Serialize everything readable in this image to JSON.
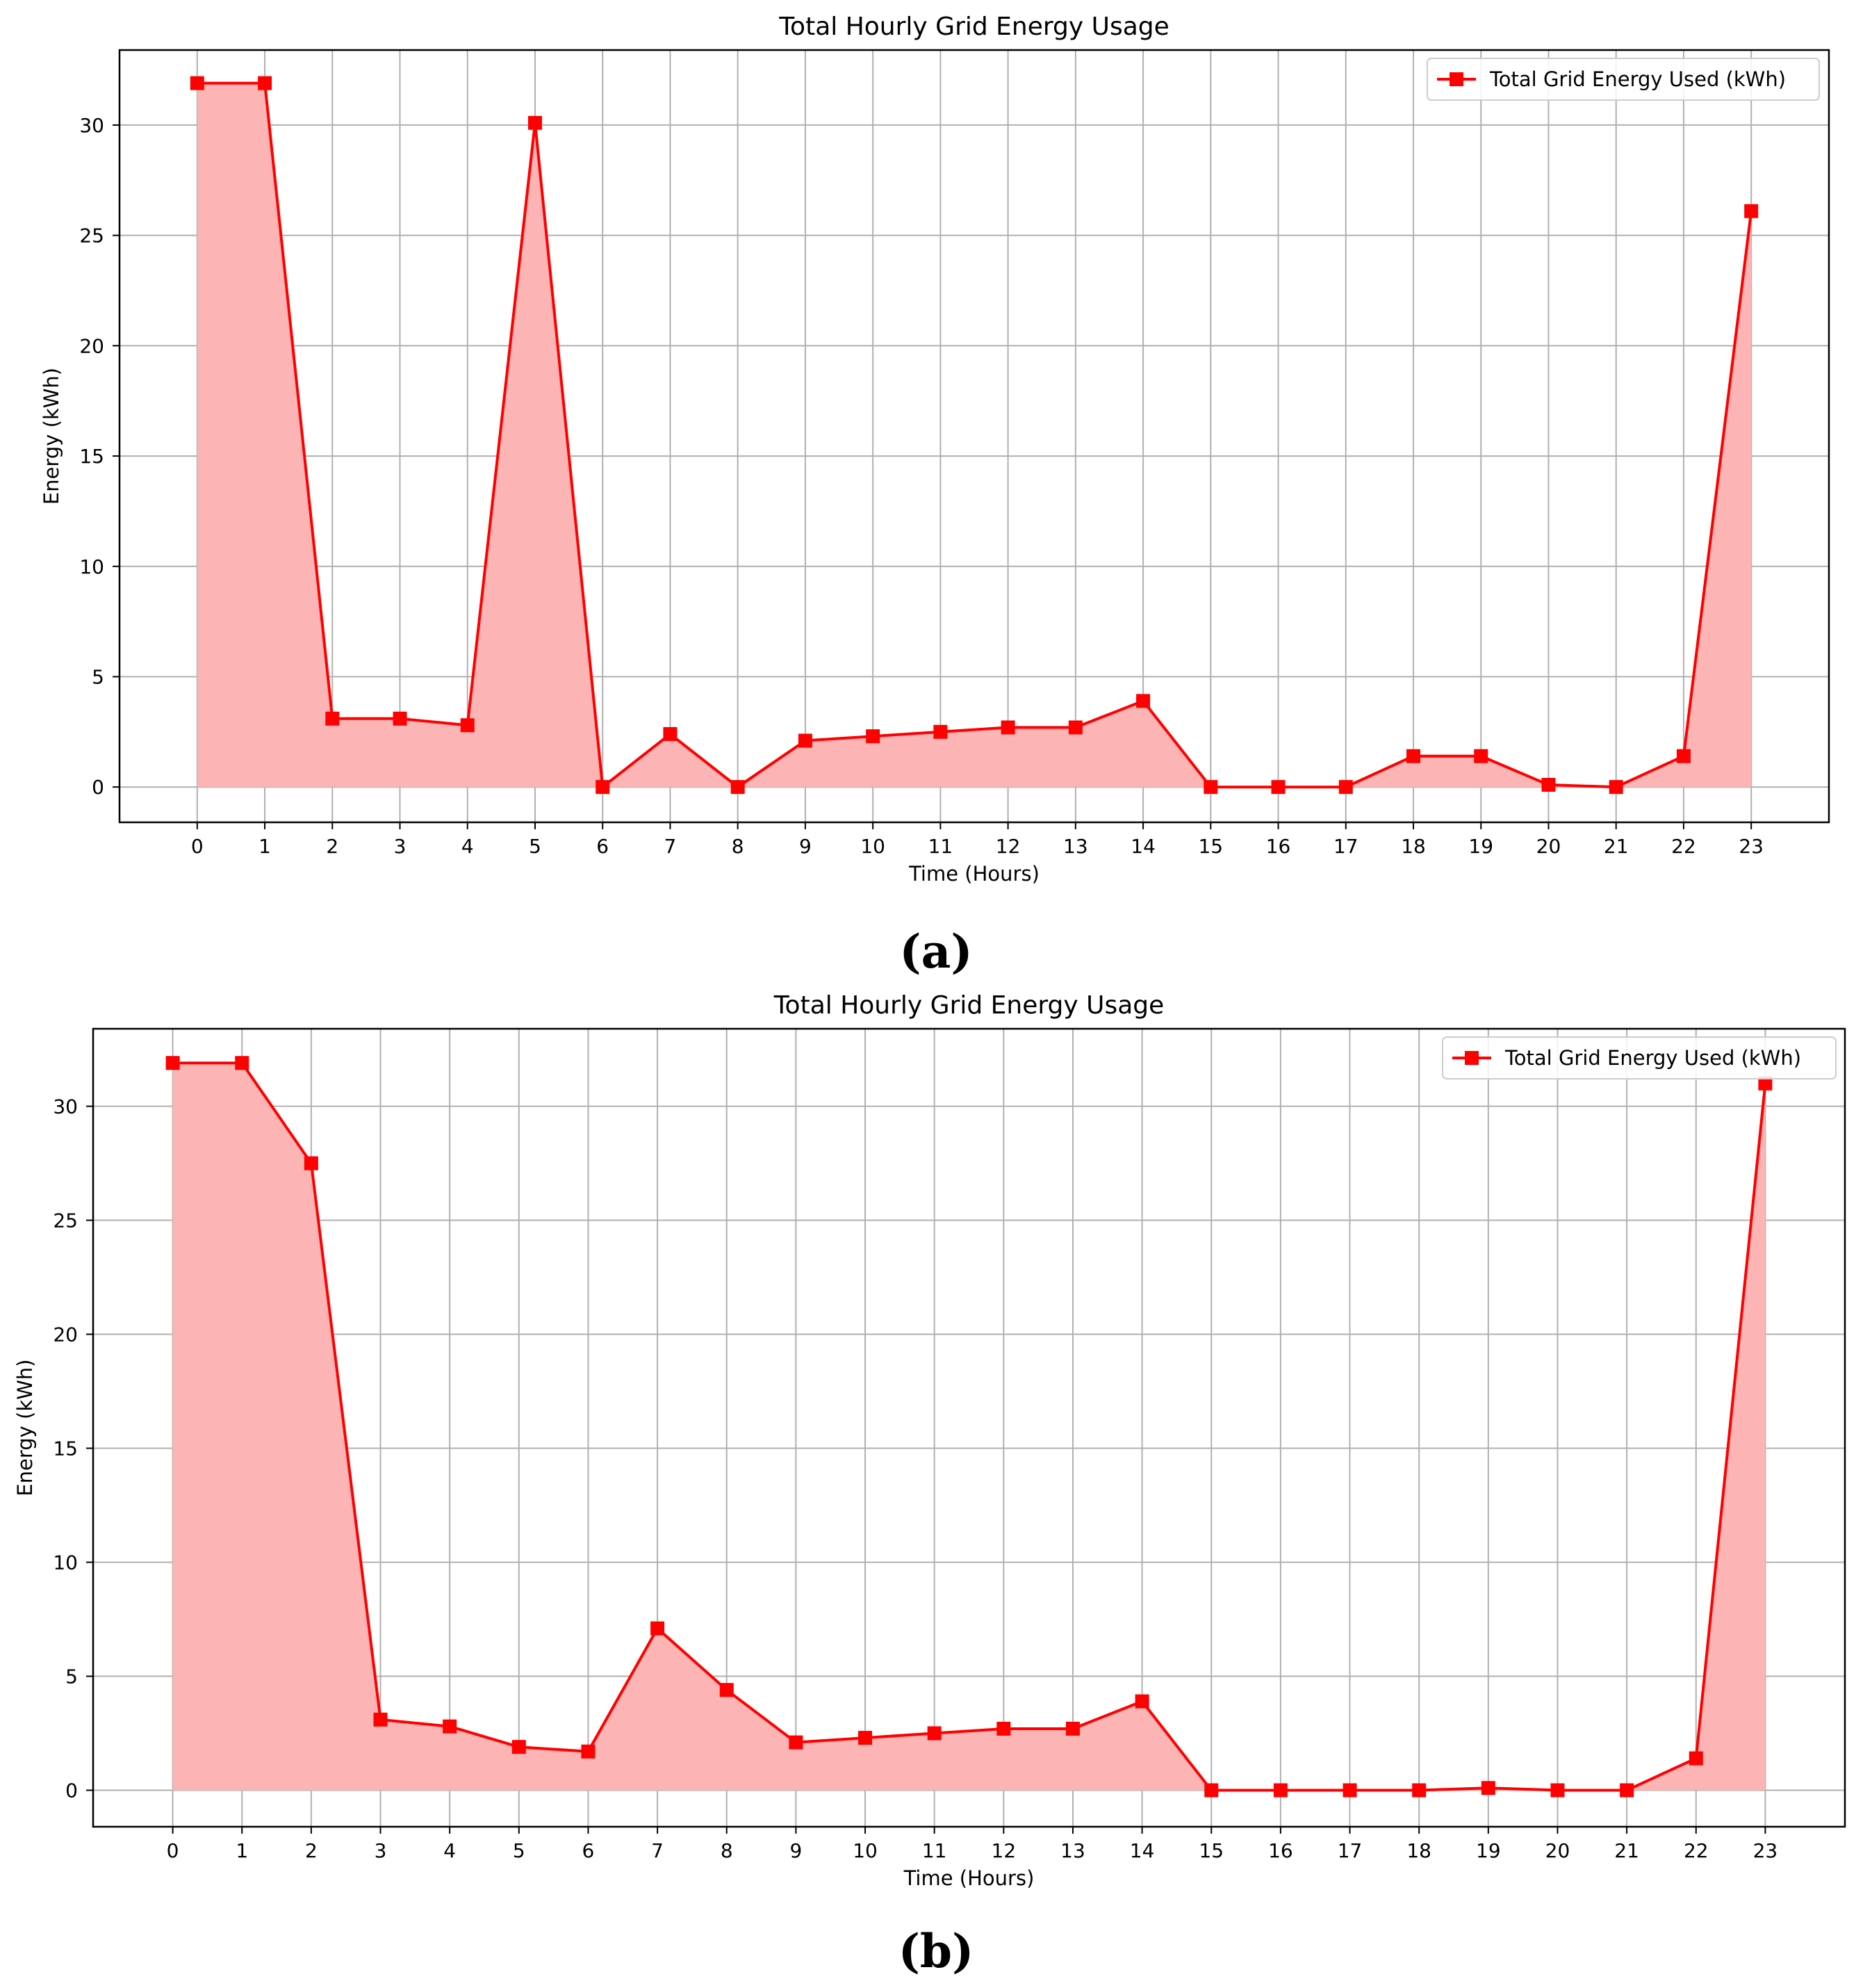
{
  "figure": {
    "panel_labels": [
      "(a)",
      "(b)"
    ]
  },
  "chart_data": [
    {
      "type": "area",
      "title": "Total Hourly Grid Energy Usage",
      "xlabel": "Time (Hours)",
      "ylabel": "Energy (kWh)",
      "x": [
        0,
        1,
        2,
        3,
        4,
        5,
        6,
        7,
        8,
        9,
        10,
        11,
        12,
        13,
        14,
        15,
        16,
        17,
        18,
        19,
        20,
        21,
        22,
        23
      ],
      "xlim": [
        -1.15,
        24.15
      ],
      "ylim": [
        -1.6,
        33.4
      ],
      "xticks": [
        0,
        1,
        2,
        3,
        4,
        5,
        6,
        7,
        8,
        9,
        10,
        11,
        12,
        13,
        14,
        15,
        16,
        17,
        18,
        19,
        20,
        21,
        22,
        23
      ],
      "yticks": [
        0,
        5,
        10,
        15,
        20,
        25,
        30
      ],
      "grid": true,
      "legend_position": "top-right",
      "series": [
        {
          "name": "Total Grid Energy Used (kWh)",
          "color": "#ff0000",
          "fill_color": "#fcb4b4",
          "marker": "square",
          "values": [
            31.9,
            31.9,
            3.1,
            3.1,
            2.8,
            30.1,
            0.0,
            2.4,
            0.0,
            2.1,
            2.3,
            2.5,
            2.7,
            2.7,
            3.9,
            0.0,
            0.0,
            0.0,
            1.4,
            1.4,
            0.1,
            0.0,
            1.4,
            26.1
          ]
        }
      ]
    },
    {
      "type": "area",
      "title": "Total Hourly Grid Energy Usage",
      "xlabel": "Time (Hours)",
      "ylabel": "Energy (kWh)",
      "x": [
        0,
        1,
        2,
        3,
        4,
        5,
        6,
        7,
        8,
        9,
        10,
        11,
        12,
        13,
        14,
        15,
        16,
        17,
        18,
        19,
        20,
        21,
        22,
        23
      ],
      "xlim": [
        -1.15,
        24.15
      ],
      "ylim": [
        -1.6,
        33.4
      ],
      "xticks": [
        0,
        1,
        2,
        3,
        4,
        5,
        6,
        7,
        8,
        9,
        10,
        11,
        12,
        13,
        14,
        15,
        16,
        17,
        18,
        19,
        20,
        21,
        22,
        23
      ],
      "yticks": [
        0,
        5,
        10,
        15,
        20,
        25,
        30
      ],
      "grid": true,
      "legend_position": "top-right",
      "series": [
        {
          "name": "Total Grid Energy Used (kWh)",
          "color": "#ff0000",
          "fill_color": "#fcb4b4",
          "marker": "square",
          "values": [
            31.9,
            31.9,
            27.5,
            3.1,
            2.8,
            1.9,
            1.7,
            7.1,
            4.4,
            2.1,
            2.3,
            2.5,
            2.7,
            2.7,
            3.9,
            0.0,
            0.0,
            0.0,
            0.0,
            0.1,
            0.0,
            0.0,
            1.4,
            31.0
          ]
        }
      ]
    }
  ]
}
